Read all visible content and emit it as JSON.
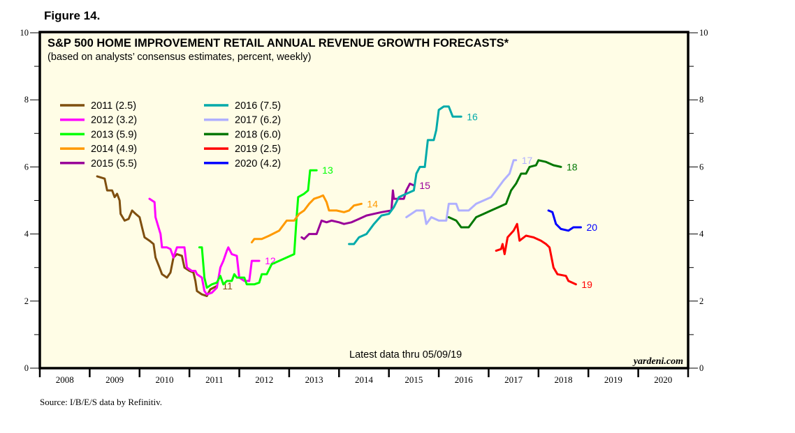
{
  "figure_label": "Figure 14.",
  "source": "Source: I/B/E/S data by Refinitiv.",
  "chart_data": {
    "type": "line",
    "title": "S&P 500 HOME IMPROVEMENT RETAIL ANNUAL REVENUE GROWTH FORECASTS*",
    "subtitle": "(based on analysts’ consensus estimates, percent, weekly)",
    "annotation": "Latest data thru 05/09/19",
    "watermark": "yardeni.com",
    "xlabel": "",
    "ylabel": "",
    "xlim": [
      2008,
      2021
    ],
    "ylim": [
      0,
      10
    ],
    "y_ticks_major": [
      "0",
      "2",
      "4",
      "6",
      "8",
      "10"
    ],
    "y_ticks_minor": [
      1,
      3,
      5,
      7,
      9
    ],
    "x_tick_labels": [
      "2008",
      "2009",
      "2010",
      "2011",
      "2012",
      "2013",
      "2014",
      "2015",
      "2016",
      "2017",
      "2018",
      "2019",
      "2020"
    ],
    "grid": false,
    "legend_position": "top-left",
    "background": "#fffde6",
    "series": [
      {
        "name": "2011 (2.5)",
        "end_label": "11",
        "color": "#7f4f0f",
        "points": [
          [
            2009.15,
            5.72
          ],
          [
            2009.3,
            5.65
          ],
          [
            2009.35,
            5.3
          ],
          [
            2009.45,
            5.3
          ],
          [
            2009.5,
            5.1
          ],
          [
            2009.55,
            5.2
          ],
          [
            2009.6,
            5.0
          ],
          [
            2009.62,
            4.6
          ],
          [
            2009.7,
            4.4
          ],
          [
            2009.78,
            4.45
          ],
          [
            2009.85,
            4.7
          ],
          [
            2009.92,
            4.6
          ],
          [
            2010.0,
            4.5
          ],
          [
            2010.05,
            4.2
          ],
          [
            2010.1,
            3.9
          ],
          [
            2010.2,
            3.8
          ],
          [
            2010.28,
            3.7
          ],
          [
            2010.32,
            3.3
          ],
          [
            2010.4,
            3.0
          ],
          [
            2010.45,
            2.8
          ],
          [
            2010.55,
            2.7
          ],
          [
            2010.62,
            2.85
          ],
          [
            2010.68,
            3.3
          ],
          [
            2010.75,
            3.4
          ],
          [
            2010.85,
            3.35
          ],
          [
            2010.9,
            3.0
          ],
          [
            2011.0,
            2.9
          ],
          [
            2011.08,
            2.85
          ],
          [
            2011.12,
            2.6
          ],
          [
            2011.15,
            2.3
          ],
          [
            2011.25,
            2.2
          ],
          [
            2011.35,
            2.15
          ],
          [
            2011.42,
            2.35
          ],
          [
            2011.55,
            2.45
          ]
        ]
      },
      {
        "name": "2012 (3.2)",
        "end_label": "12",
        "color": "#ff00ff",
        "points": [
          [
            2010.2,
            5.05
          ],
          [
            2010.3,
            4.95
          ],
          [
            2010.32,
            4.5
          ],
          [
            2010.38,
            4.2
          ],
          [
            2010.42,
            4.0
          ],
          [
            2010.45,
            3.6
          ],
          [
            2010.55,
            3.6
          ],
          [
            2010.62,
            3.55
          ],
          [
            2010.68,
            3.3
          ],
          [
            2010.75,
            3.6
          ],
          [
            2010.9,
            3.6
          ],
          [
            2010.95,
            3.0
          ],
          [
            2011.05,
            2.9
          ],
          [
            2011.12,
            2.9
          ],
          [
            2011.15,
            2.8
          ],
          [
            2011.25,
            2.7
          ],
          [
            2011.3,
            2.3
          ],
          [
            2011.35,
            2.2
          ],
          [
            2011.45,
            2.25
          ],
          [
            2011.55,
            2.4
          ],
          [
            2011.62,
            3.0
          ],
          [
            2011.68,
            3.2
          ],
          [
            2011.75,
            3.5
          ],
          [
            2011.78,
            3.6
          ],
          [
            2011.85,
            3.4
          ],
          [
            2011.95,
            3.35
          ],
          [
            2012.0,
            2.7
          ],
          [
            2012.1,
            2.6
          ],
          [
            2012.2,
            2.6
          ],
          [
            2012.25,
            3.2
          ],
          [
            2012.4,
            3.2
          ]
        ]
      },
      {
        "name": "2013 (5.9)",
        "end_label": "13",
        "color": "#00ff00",
        "points": [
          [
            2011.2,
            3.6
          ],
          [
            2011.25,
            3.6
          ],
          [
            2011.3,
            2.7
          ],
          [
            2011.35,
            2.4
          ],
          [
            2011.45,
            2.5
          ],
          [
            2011.55,
            2.55
          ],
          [
            2011.62,
            2.75
          ],
          [
            2011.68,
            2.5
          ],
          [
            2011.75,
            2.6
          ],
          [
            2011.85,
            2.6
          ],
          [
            2011.9,
            2.8
          ],
          [
            2011.95,
            2.7
          ],
          [
            2012.1,
            2.7
          ],
          [
            2012.15,
            2.5
          ],
          [
            2012.3,
            2.5
          ],
          [
            2012.4,
            2.55
          ],
          [
            2012.45,
            2.8
          ],
          [
            2012.55,
            2.8
          ],
          [
            2012.65,
            3.1
          ],
          [
            2012.8,
            3.2
          ],
          [
            2013.1,
            3.4
          ],
          [
            2013.15,
            4.5
          ],
          [
            2013.18,
            5.1
          ],
          [
            2013.3,
            5.2
          ],
          [
            2013.38,
            5.3
          ],
          [
            2013.42,
            5.9
          ],
          [
            2013.48,
            5.9
          ],
          [
            2013.55,
            5.9
          ]
        ]
      },
      {
        "name": "2014 (4.9)",
        "end_label": "14",
        "color": "#ff9900",
        "points": [
          [
            2012.25,
            3.75
          ],
          [
            2012.3,
            3.85
          ],
          [
            2012.45,
            3.85
          ],
          [
            2012.6,
            3.95
          ],
          [
            2012.8,
            4.1
          ],
          [
            2012.95,
            4.4
          ],
          [
            2013.1,
            4.4
          ],
          [
            2013.2,
            4.6
          ],
          [
            2013.3,
            4.7
          ],
          [
            2013.4,
            4.9
          ],
          [
            2013.5,
            5.05
          ],
          [
            2013.6,
            5.1
          ],
          [
            2013.68,
            5.15
          ],
          [
            2013.75,
            4.95
          ],
          [
            2013.8,
            4.7
          ],
          [
            2013.95,
            4.7
          ],
          [
            2014.1,
            4.65
          ],
          [
            2014.2,
            4.7
          ],
          [
            2014.3,
            4.85
          ],
          [
            2014.45,
            4.9
          ]
        ]
      },
      {
        "name": "2015 (5.5)",
        "end_label": "15",
        "color": "#990099",
        "points": [
          [
            2013.25,
            3.9
          ],
          [
            2013.3,
            3.85
          ],
          [
            2013.4,
            4.0
          ],
          [
            2013.55,
            4.0
          ],
          [
            2013.65,
            4.4
          ],
          [
            2013.75,
            4.35
          ],
          [
            2013.85,
            4.4
          ],
          [
            2014.0,
            4.35
          ],
          [
            2014.1,
            4.3
          ],
          [
            2014.25,
            4.35
          ],
          [
            2014.4,
            4.45
          ],
          [
            2014.55,
            4.55
          ],
          [
            2014.7,
            4.6
          ],
          [
            2014.85,
            4.65
          ],
          [
            2015.05,
            4.7
          ],
          [
            2015.08,
            5.3
          ],
          [
            2015.1,
            5.05
          ],
          [
            2015.3,
            5.05
          ],
          [
            2015.35,
            5.3
          ],
          [
            2015.42,
            5.5
          ],
          [
            2015.5,
            5.45
          ]
        ]
      },
      {
        "name": "2016 (7.5)",
        "end_label": "16",
        "color": "#00aaaa",
        "points": [
          [
            2014.2,
            3.7
          ],
          [
            2014.3,
            3.7
          ],
          [
            2014.4,
            3.9
          ],
          [
            2014.55,
            4.0
          ],
          [
            2014.7,
            4.3
          ],
          [
            2014.85,
            4.55
          ],
          [
            2015.0,
            4.6
          ],
          [
            2015.1,
            4.8
          ],
          [
            2015.2,
            5.1
          ],
          [
            2015.35,
            5.2
          ],
          [
            2015.5,
            5.3
          ],
          [
            2015.55,
            5.8
          ],
          [
            2015.62,
            6.0
          ],
          [
            2015.72,
            6.0
          ],
          [
            2015.78,
            6.8
          ],
          [
            2015.9,
            6.8
          ],
          [
            2015.95,
            7.1
          ],
          [
            2016.0,
            7.7
          ],
          [
            2016.1,
            7.8
          ],
          [
            2016.2,
            7.8
          ],
          [
            2016.28,
            7.5
          ],
          [
            2016.45,
            7.5
          ]
        ]
      },
      {
        "name": "2017 (6.2)",
        "end_label": "17",
        "color": "#b0b0ff",
        "points": [
          [
            2015.35,
            4.5
          ],
          [
            2015.45,
            4.6
          ],
          [
            2015.55,
            4.7
          ],
          [
            2015.7,
            4.7
          ],
          [
            2015.75,
            4.3
          ],
          [
            2015.85,
            4.5
          ],
          [
            2016.0,
            4.4
          ],
          [
            2016.15,
            4.4
          ],
          [
            2016.2,
            4.9
          ],
          [
            2016.35,
            4.9
          ],
          [
            2016.4,
            4.7
          ],
          [
            2016.6,
            4.7
          ],
          [
            2016.75,
            4.9
          ],
          [
            2016.9,
            5.0
          ],
          [
            2017.05,
            5.1
          ],
          [
            2017.15,
            5.3
          ],
          [
            2017.3,
            5.6
          ],
          [
            2017.42,
            5.8
          ],
          [
            2017.5,
            6.2
          ],
          [
            2017.55,
            6.2
          ]
        ]
      },
      {
        "name": "2018 (6.0)",
        "end_label": "18",
        "color": "#007700",
        "points": [
          [
            2016.2,
            4.5
          ],
          [
            2016.35,
            4.4
          ],
          [
            2016.45,
            4.2
          ],
          [
            2016.6,
            4.2
          ],
          [
            2016.75,
            4.5
          ],
          [
            2016.9,
            4.6
          ],
          [
            2017.05,
            4.7
          ],
          [
            2017.2,
            4.8
          ],
          [
            2017.35,
            4.9
          ],
          [
            2017.45,
            5.3
          ],
          [
            2017.55,
            5.5
          ],
          [
            2017.65,
            5.8
          ],
          [
            2017.75,
            5.8
          ],
          [
            2017.82,
            6.0
          ],
          [
            2017.95,
            6.05
          ],
          [
            2018.0,
            6.2
          ],
          [
            2018.15,
            6.15
          ],
          [
            2018.3,
            6.05
          ],
          [
            2018.45,
            6.0
          ]
        ]
      },
      {
        "name": "2019 (2.5)",
        "end_label": "19",
        "color": "#ff0000",
        "points": [
          [
            2017.15,
            3.5
          ],
          [
            2017.25,
            3.55
          ],
          [
            2017.28,
            3.7
          ],
          [
            2017.32,
            3.4
          ],
          [
            2017.38,
            3.9
          ],
          [
            2017.5,
            4.1
          ],
          [
            2017.57,
            4.3
          ],
          [
            2017.62,
            3.8
          ],
          [
            2017.75,
            3.95
          ],
          [
            2017.9,
            3.9
          ],
          [
            2018.05,
            3.8
          ],
          [
            2018.15,
            3.7
          ],
          [
            2018.22,
            3.6
          ],
          [
            2018.3,
            3.0
          ],
          [
            2018.38,
            2.8
          ],
          [
            2018.55,
            2.75
          ],
          [
            2018.6,
            2.6
          ],
          [
            2018.75,
            2.5
          ]
        ]
      },
      {
        "name": "2020 (4.2)",
        "end_label": "20",
        "color": "#0000ff",
        "points": [
          [
            2018.2,
            4.7
          ],
          [
            2018.28,
            4.65
          ],
          [
            2018.35,
            4.3
          ],
          [
            2018.45,
            4.15
          ],
          [
            2018.6,
            4.1
          ],
          [
            2018.7,
            4.2
          ],
          [
            2018.85,
            4.2
          ]
        ]
      }
    ]
  }
}
